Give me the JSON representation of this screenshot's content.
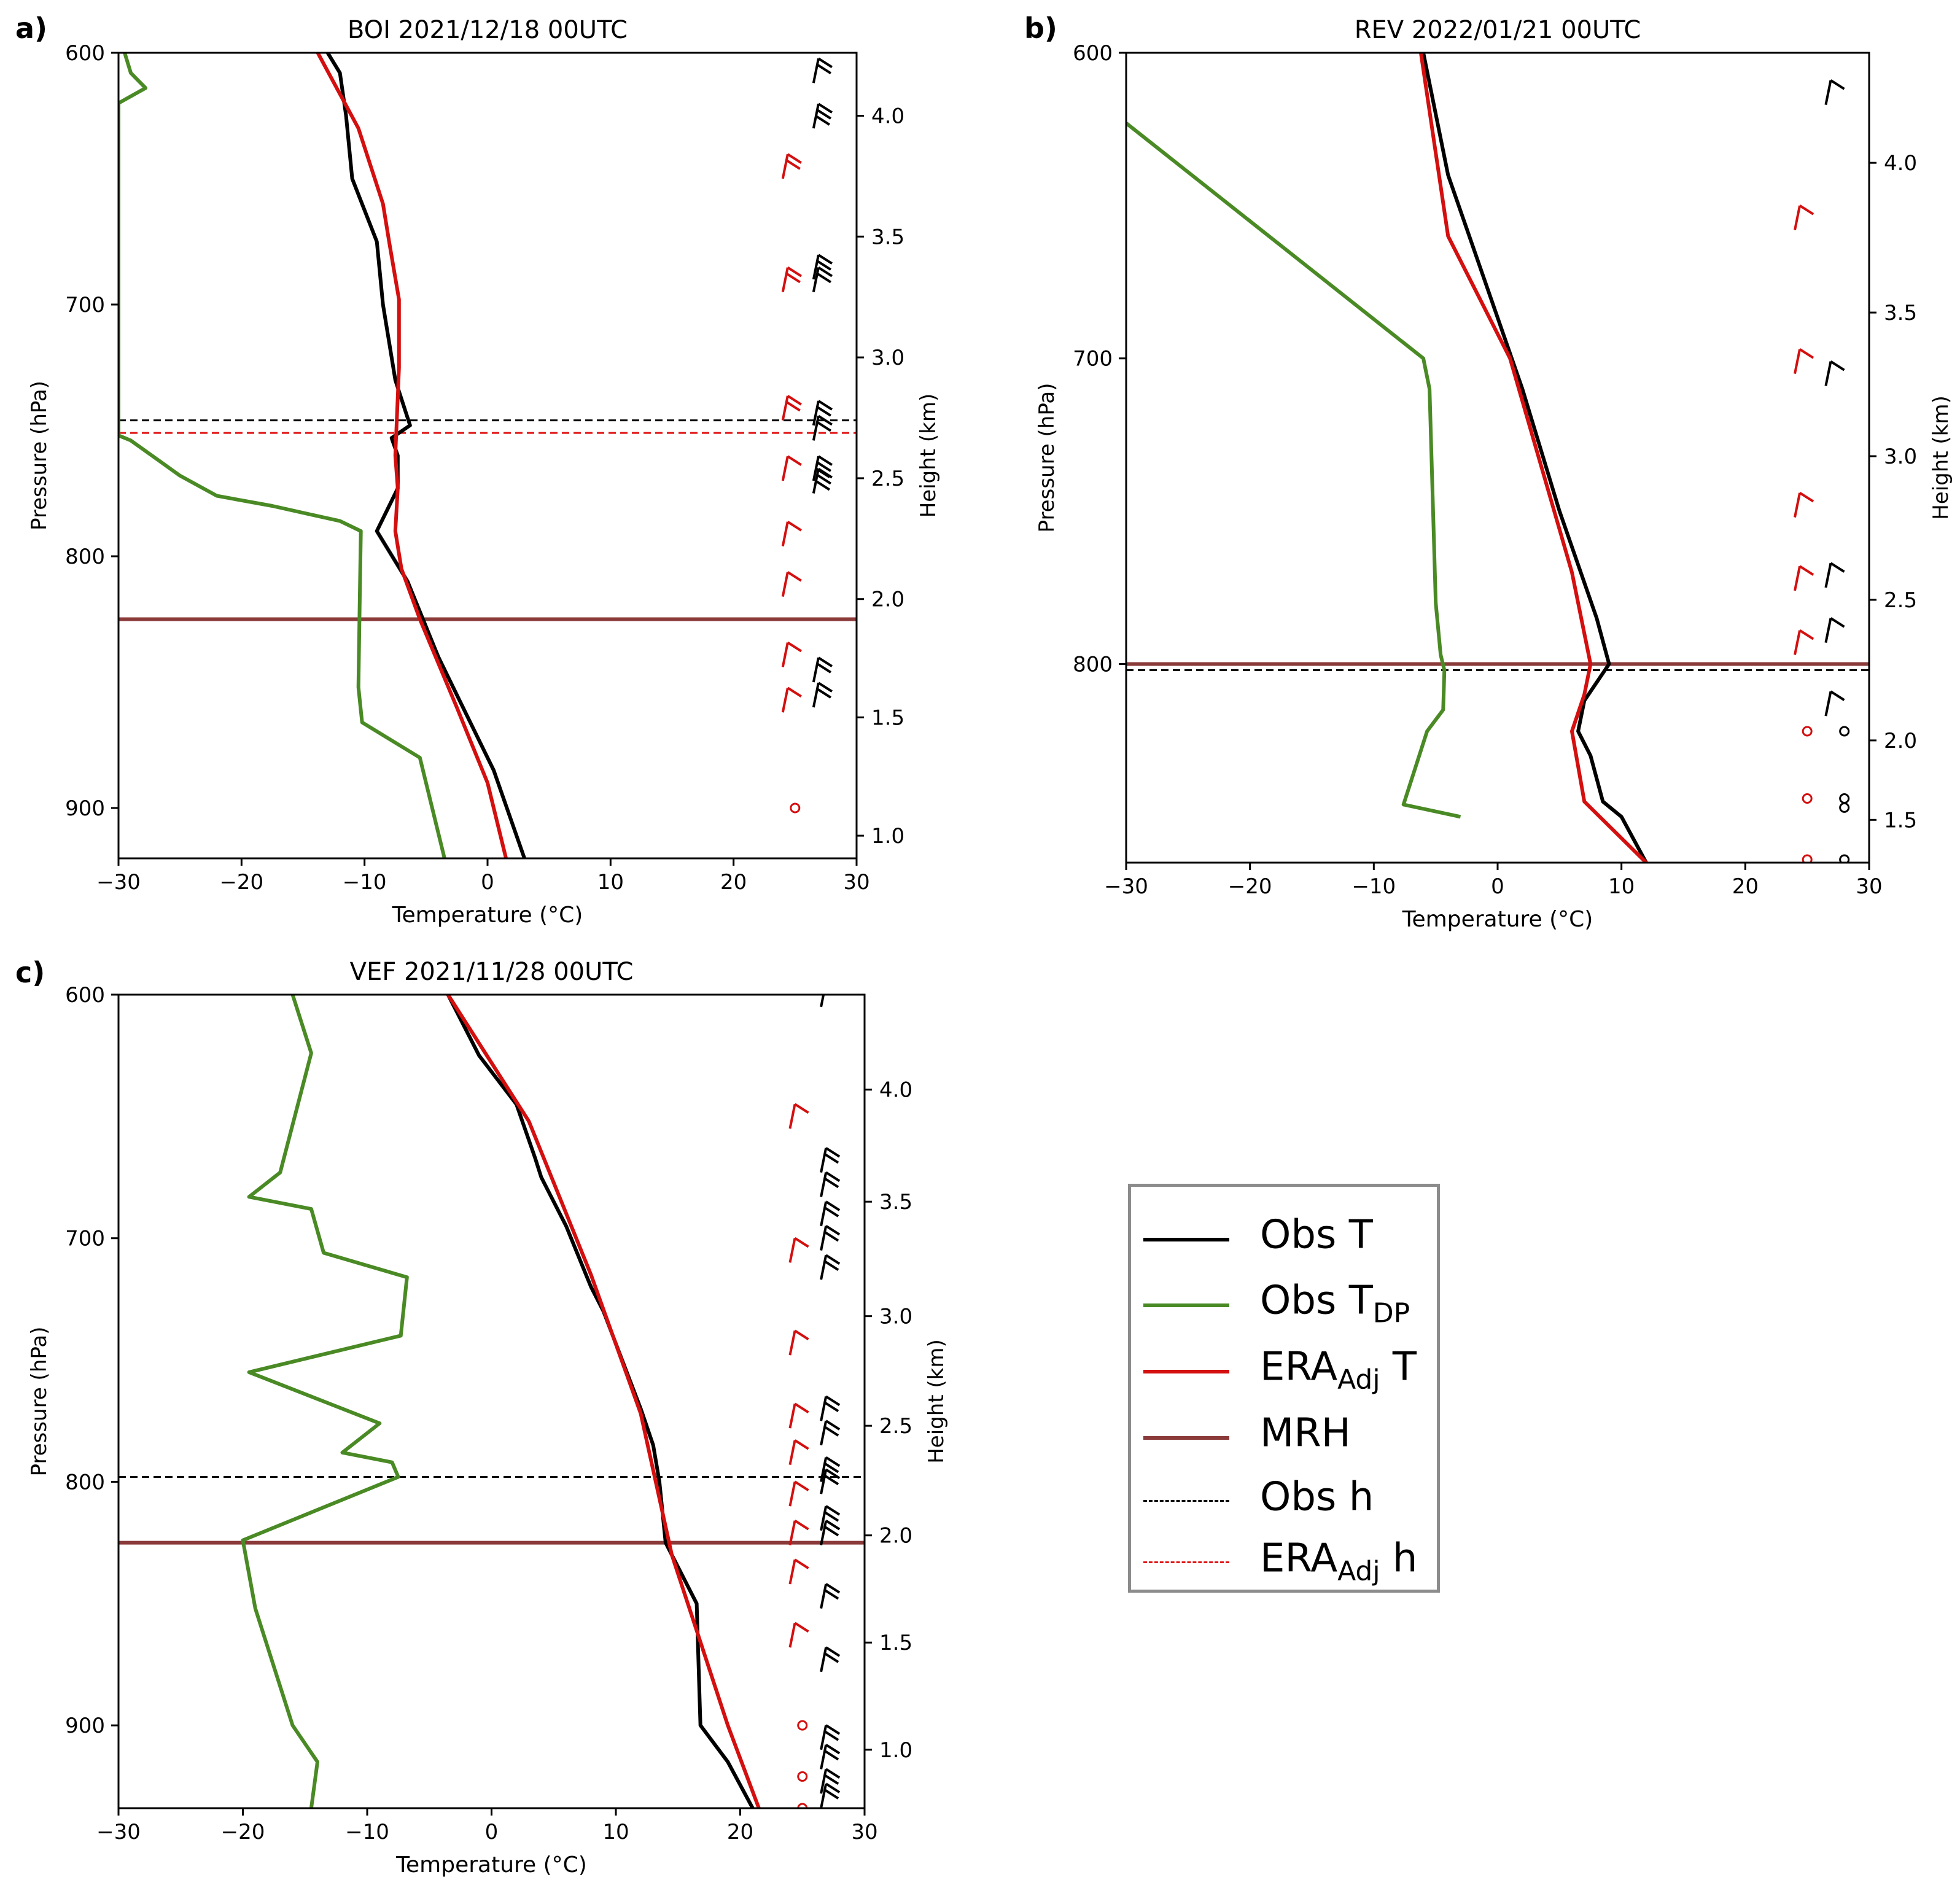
{
  "figure": {
    "colors": {
      "obs_t": "#000000",
      "obs_tdp": "#4a8a25",
      "era_t": "#d40f0f",
      "mrh": "#8b3a3a",
      "obs_h": "#000000",
      "era_h": "#e01515",
      "barb_obs": "#000000",
      "barb_era": "#d40f0f"
    }
  },
  "chart_data": [
    {
      "type": "line",
      "panel_label": "a)",
      "title": "BOI 2021/12/18 00UTC",
      "xlabel": "Temperature (°C)",
      "ylabel": "Pressure (hPa)",
      "y2label": "Height (km)",
      "xlim": [
        -30,
        30
      ],
      "ylim": [
        600,
        920
      ],
      "xticks": [
        -30,
        -20,
        -10,
        0,
        10,
        20,
        30
      ],
      "xtick_labels": [
        "−30",
        "−20",
        "−10",
        "0",
        "10",
        "20",
        "30"
      ],
      "yticks": [
        600,
        700,
        800,
        900
      ],
      "ytick_labels": [
        "600",
        "700",
        "800",
        "900"
      ],
      "y2ticks": [
        [
          4.0,
          625
        ],
        [
          3.5,
          673
        ],
        [
          3.0,
          721
        ],
        [
          2.5,
          769
        ],
        [
          2.0,
          817
        ],
        [
          1.5,
          864
        ],
        [
          1.0,
          911
        ]
      ],
      "y2tick_labels": [
        "4.0",
        "3.5",
        "3.0",
        "2.5",
        "2.0",
        "1.5",
        "1.0"
      ],
      "series": [
        {
          "name": "Obs T",
          "color_key": "obs_t",
          "points": [
            [
              -13.0,
              600
            ],
            [
              -12.0,
              608
            ],
            [
              -11.5,
              625
            ],
            [
              -11.0,
              650
            ],
            [
              -9.0,
              675
            ],
            [
              -8.5,
              700
            ],
            [
              -7.5,
              730
            ],
            [
              -6.3,
              748
            ],
            [
              -7.8,
              753
            ],
            [
              -7.3,
              760
            ],
            [
              -7.3,
              773
            ],
            [
              -9.0,
              790
            ],
            [
              -6.5,
              810
            ],
            [
              -4.0,
              840
            ],
            [
              -2.0,
              860
            ],
            [
              0.5,
              885
            ],
            [
              3.0,
              920
            ]
          ]
        },
        {
          "name": "Obs TDP",
          "color_key": "obs_tdp",
          "points": [
            [
              -29.5,
              600
            ],
            [
              -29.0,
              608
            ],
            [
              -27.8,
              614
            ],
            [
              -30.0,
              620
            ],
            [
              -30.0,
              752
            ],
            [
              -29.0,
              754
            ],
            [
              -25.0,
              768
            ],
            [
              -22.0,
              776
            ],
            [
              -17.5,
              780
            ],
            [
              -12.0,
              786
            ],
            [
              -10.3,
              790
            ],
            [
              -10.4,
              820
            ],
            [
              -10.5,
              852
            ],
            [
              -10.2,
              866
            ],
            [
              -5.5,
              880
            ],
            [
              -3.5,
              920
            ]
          ]
        },
        {
          "name": "ERA T",
          "color_key": "era_t",
          "points": [
            [
              -13.8,
              600
            ],
            [
              -10.5,
              630
            ],
            [
              -8.5,
              660
            ],
            [
              -8.0,
              675
            ],
            [
              -7.2,
              698
            ],
            [
              -7.2,
              725
            ],
            [
              -7.5,
              760
            ],
            [
              -7.3,
              773
            ],
            [
              -7.5,
              790
            ],
            [
              -7.0,
              805
            ],
            [
              -5.5,
              825
            ],
            [
              -2.5,
              860
            ],
            [
              0.0,
              890
            ],
            [
              1.5,
              920
            ]
          ]
        }
      ],
      "hlines": [
        {
          "name": "MRH",
          "value": 825,
          "color_key": "mrh",
          "style": "solid"
        },
        {
          "name": "Obs h",
          "value": 746,
          "color_key": "obs_h",
          "style": "dashed"
        },
        {
          "name": "ERA h",
          "value": 751,
          "color_key": "era_h",
          "style": "dashed"
        }
      ],
      "barbs_obs": [
        [
          612,
          2
        ],
        [
          630,
          3
        ],
        [
          690,
          2
        ],
        [
          695,
          2
        ],
        [
          748,
          2
        ],
        [
          754,
          2
        ],
        [
          770,
          3
        ],
        [
          775,
          3
        ],
        [
          850,
          2
        ],
        [
          860,
          2
        ]
      ],
      "barbs_era": [
        [
          650,
          2
        ],
        [
          695,
          2
        ],
        [
          746,
          2
        ],
        [
          770,
          1
        ],
        [
          796,
          1
        ],
        [
          816,
          1
        ],
        [
          844,
          1
        ],
        [
          862,
          1
        ]
      ],
      "barbs_calm_obs": [],
      "barbs_calm_era": [
        900
      ]
    },
    {
      "type": "line",
      "panel_label": "b)",
      "title": "REV 2022/01/21 00UTC",
      "xlabel": "Temperature (°C)",
      "ylabel": "Pressure (hPa)",
      "y2label": "Height (km)",
      "xlim": [
        -30,
        30
      ],
      "ylim": [
        600,
        865
      ],
      "xticks": [
        -30,
        -20,
        -10,
        0,
        10,
        20,
        30
      ],
      "xtick_labels": [
        "−30",
        "−20",
        "−10",
        "0",
        "10",
        "20",
        "30"
      ],
      "yticks": [
        600,
        700,
        800
      ],
      "ytick_labels": [
        "600",
        "700",
        "800"
      ],
      "y2ticks": [
        [
          4.0,
          636
        ],
        [
          3.5,
          685
        ],
        [
          3.0,
          732
        ],
        [
          2.5,
          779
        ],
        [
          2.0,
          825
        ],
        [
          1.5,
          851
        ]
      ],
      "y2tick_labels": [
        "4.0",
        "3.5",
        "3.0",
        "2.5",
        "2.0",
        "1.5"
      ],
      "series": [
        {
          "name": "Obs T",
          "color_key": "obs_t",
          "points": [
            [
              -6.0,
              600
            ],
            [
              -4.0,
              640
            ],
            [
              2.0,
              710
            ],
            [
              5.0,
              750
            ],
            [
              8.0,
              785
            ],
            [
              9.0,
              800
            ],
            [
              7.0,
              812
            ],
            [
              6.5,
              822
            ],
            [
              7.5,
              830
            ],
            [
              8.5,
              845
            ],
            [
              10.0,
              850
            ],
            [
              12.0,
              865
            ]
          ]
        },
        {
          "name": "Obs TDP",
          "color_key": "obs_tdp",
          "points": [
            [
              -30.0,
              623
            ],
            [
              -6.0,
              700
            ],
            [
              -5.5,
              710
            ],
            [
              -5.0,
              780
            ],
            [
              -4.6,
              797
            ],
            [
              -4.3,
              802
            ],
            [
              -4.4,
              815
            ],
            [
              -5.7,
              822
            ],
            [
              -7.6,
              846
            ],
            [
              -3.0,
              850
            ]
          ]
        },
        {
          "name": "ERA T",
          "color_key": "era_t",
          "points": [
            [
              -6.2,
              600
            ],
            [
              -4.0,
              660
            ],
            [
              1.0,
              700
            ],
            [
              6.0,
              770
            ],
            [
              7.5,
              800
            ],
            [
              7.0,
              810
            ],
            [
              6.0,
              822
            ],
            [
              7.0,
              845
            ],
            [
              12.0,
              865
            ]
          ]
        }
      ],
      "hlines": [
        {
          "name": "MRH",
          "value": 800,
          "color_key": "mrh",
          "style": "solid"
        },
        {
          "name": "Obs h",
          "value": 802,
          "color_key": "obs_h",
          "style": "dashed"
        }
      ],
      "barbs_obs": [
        [
          617,
          1
        ],
        [
          709,
          1
        ],
        [
          775,
          1
        ],
        [
          793,
          1
        ],
        [
          817,
          1
        ]
      ],
      "barbs_era": [
        [
          658,
          1
        ],
        [
          705,
          1
        ],
        [
          752,
          1
        ],
        [
          776,
          1
        ],
        [
          797,
          1
        ]
      ],
      "barbs_calm_obs": [
        822,
        844,
        847,
        864
      ],
      "barbs_calm_era": [
        822,
        844,
        864
      ]
    },
    {
      "type": "line",
      "panel_label": "c)",
      "title": "VEF 2021/11/28 00UTC",
      "xlabel": "Temperature (°C)",
      "ylabel": "Pressure (hPa)",
      "y2label": "Height (km)",
      "xlim": [
        -30,
        30
      ],
      "ylim": [
        600,
        934
      ],
      "xticks": [
        -30,
        -20,
        -10,
        0,
        10,
        20,
        30
      ],
      "xtick_labels": [
        "−30",
        "−20",
        "−10",
        "0",
        "10",
        "20",
        "30"
      ],
      "yticks": [
        600,
        700,
        800,
        900
      ],
      "ytick_labels": [
        "600",
        "700",
        "800",
        "900"
      ],
      "y2ticks": [
        [
          4.0,
          639
        ],
        [
          3.5,
          685
        ],
        [
          3.0,
          732
        ],
        [
          2.5,
          777
        ],
        [
          2.0,
          822
        ],
        [
          1.5,
          866
        ],
        [
          1.0,
          910
        ]
      ],
      "y2tick_labels": [
        "4.0",
        "3.5",
        "3.0",
        "2.5",
        "2.0",
        "1.5",
        "1.0"
      ],
      "series": [
        {
          "name": "Obs T",
          "color_key": "obs_t",
          "points": [
            [
              -3.5,
              600
            ],
            [
              -1.0,
              625
            ],
            [
              2.0,
              645
            ],
            [
              3.5,
              667
            ],
            [
              4.0,
              675
            ],
            [
              6.0,
              695
            ],
            [
              8.0,
              720
            ],
            [
              9.0,
              730
            ],
            [
              12.0,
              770
            ],
            [
              13.0,
              785
            ],
            [
              13.5,
              800
            ],
            [
              14.0,
              825
            ],
            [
              16.5,
              850
            ],
            [
              16.8,
              900
            ],
            [
              19.0,
              915
            ],
            [
              21.0,
              934
            ]
          ]
        },
        {
          "name": "Obs TDP",
          "color_key": "obs_tdp",
          "points": [
            [
              -16.0,
              600
            ],
            [
              -14.5,
              624
            ],
            [
              -17.0,
              673
            ],
            [
              -19.5,
              683
            ],
            [
              -14.5,
              688
            ],
            [
              -13.5,
              706
            ],
            [
              -9.5,
              712
            ],
            [
              -6.8,
              716
            ],
            [
              -7.3,
              740
            ],
            [
              -19.5,
              755
            ],
            [
              -9.0,
              776
            ],
            [
              -12.0,
              788
            ],
            [
              -8.0,
              792
            ],
            [
              -7.5,
              798
            ],
            [
              -20.0,
              824
            ],
            [
              -19.0,
              852
            ],
            [
              -16.0,
              900
            ],
            [
              -14.0,
              915
            ],
            [
              -14.5,
              934
            ]
          ]
        },
        {
          "name": "ERA T",
          "color_key": "era_t",
          "points": [
            [
              -3.5,
              600
            ],
            [
              3.0,
              652
            ],
            [
              8.0,
              715
            ],
            [
              12.0,
              772
            ],
            [
              14.5,
              830
            ],
            [
              19.0,
              900
            ],
            [
              21.5,
              934
            ]
          ]
        }
      ],
      "hlines": [
        {
          "name": "MRH",
          "value": 825,
          "color_key": "mrh",
          "style": "solid"
        },
        {
          "name": "Obs h",
          "value": 798,
          "color_key": "obs_h",
          "style": "dashed"
        }
      ],
      "barbs_obs": [
        [
          605,
          1
        ],
        [
          673,
          2
        ],
        [
          683,
          2
        ],
        [
          695,
          2
        ],
        [
          705,
          2
        ],
        [
          717,
          2
        ],
        [
          775,
          2
        ],
        [
          785,
          2
        ],
        [
          800,
          2
        ],
        [
          805,
          2
        ],
        [
          820,
          2
        ],
        [
          826,
          2
        ],
        [
          852,
          2
        ],
        [
          878,
          2
        ],
        [
          910,
          2
        ],
        [
          918,
          2
        ],
        [
          928,
          2
        ],
        [
          934,
          2
        ]
      ],
      "barbs_era": [
        [
          655,
          1
        ],
        [
          710,
          1
        ],
        [
          748,
          1
        ],
        [
          778,
          1
        ],
        [
          793,
          1
        ],
        [
          810,
          1
        ],
        [
          826,
          1
        ],
        [
          842,
          1
        ],
        [
          868,
          1
        ]
      ],
      "barbs_calm_obs": [],
      "barbs_calm_era": [
        900,
        921,
        934
      ]
    }
  ],
  "legend": {
    "entries": [
      {
        "label": "Obs T",
        "sub": "",
        "suffix": "",
        "color_key": "obs_t",
        "style": "solid"
      },
      {
        "label": "Obs T",
        "sub": "DP",
        "suffix": "",
        "color_key": "obs_tdp",
        "style": "solid"
      },
      {
        "label": "ERA",
        "sub": "Adj",
        "suffix": " T",
        "color_key": "era_t",
        "style": "solid"
      },
      {
        "label": "MRH",
        "sub": "",
        "suffix": "",
        "color_key": "mrh",
        "style": "solid"
      },
      {
        "label": "Obs h",
        "sub": "",
        "suffix": "",
        "color_key": "obs_h",
        "style": "dashed"
      },
      {
        "label": "ERA",
        "sub": "Adj",
        "suffix": " h",
        "color_key": "era_h",
        "style": "dashed"
      }
    ]
  }
}
